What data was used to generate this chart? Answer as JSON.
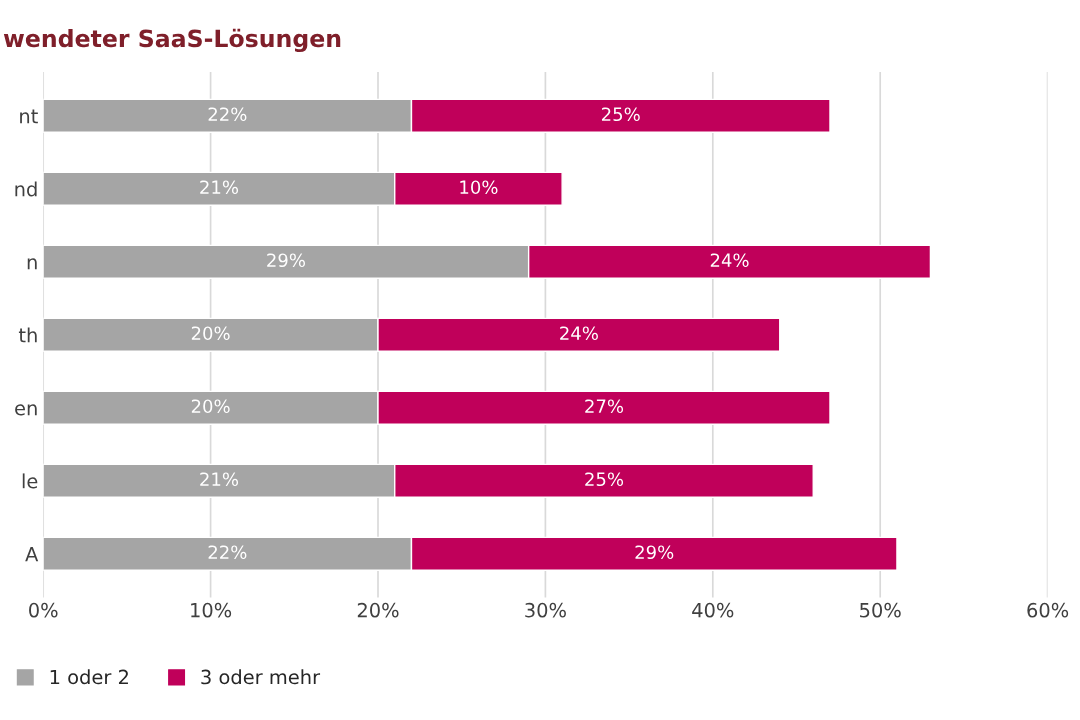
{
  "chart_data": {
    "type": "bar",
    "orientation": "horizontal",
    "stacked": true,
    "title": "wendeter SaaS-Lösungen",
    "categories": [
      "nt",
      "nd",
      "n",
      "th",
      "en",
      "le",
      "A"
    ],
    "series": [
      {
        "name": "1 oder 2",
        "color": "#a5a5a5",
        "values": [
          22,
          21,
          29,
          20,
          20,
          21,
          22
        ],
        "value_labels": [
          "22%",
          "21%",
          "29%",
          "20%",
          "20%",
          "21%",
          "22%"
        ]
      },
      {
        "name": "3 oder mehr",
        "color": "#c0005a",
        "values": [
          25,
          10,
          24,
          24,
          27,
          25,
          29
        ],
        "value_labels": [
          "25%",
          "10%",
          "24%",
          "24%",
          "27%",
          "25%",
          "29%"
        ]
      }
    ],
    "xlim": [
      0,
      60
    ],
    "xticks": [
      {
        "value": 0,
        "label": "0%"
      },
      {
        "value": 10,
        "label": "10%"
      },
      {
        "value": 20,
        "label": "20%"
      },
      {
        "value": 30,
        "label": "30%"
      },
      {
        "value": 40,
        "label": "40%"
      },
      {
        "value": 50,
        "label": "50%"
      },
      {
        "value": 60,
        "label": "60%"
      }
    ],
    "grid": "x",
    "legend": "bottom left"
  }
}
